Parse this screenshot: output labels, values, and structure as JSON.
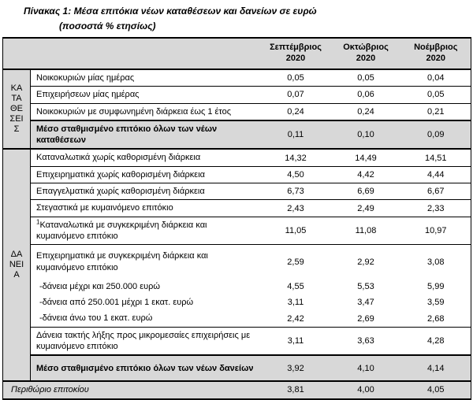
{
  "title": "Πίνακας 1: Μέσα επιτόκια νέων καταθέσεων και δανείων σε ευρώ",
  "subtitle": "(ποσοστά % ετησίως)",
  "columns": [
    {
      "month": "Σεπτέμβριος",
      "year": "2020"
    },
    {
      "month": "Οκτώβριος",
      "year": "2020"
    },
    {
      "month": "Νοέμβριος",
      "year": "2020"
    }
  ],
  "sections": [
    {
      "id": "katatheseis",
      "label_lines": [
        "ΚΑ",
        "ΤΑ",
        "ΘΕ",
        "ΣΕΙ",
        "Σ"
      ],
      "rows": [
        {
          "label": "Νοικοκυριών μίας ημέρας",
          "values": [
            "0,05",
            "0,05",
            "0,04"
          ],
          "style": "normal"
        },
        {
          "label": "Επιχειρήσεων μίας ημέρας",
          "values": [
            "0,07",
            "0,06",
            "0,05"
          ],
          "style": "normal"
        },
        {
          "label": "Νοικοκυριών με συμφωνημένη διάρκεια έως 1 έτος",
          "values": [
            "0,24",
            "0,24",
            "0,21"
          ],
          "style": "normal"
        },
        {
          "label": "Μέσο σταθμισμένο επιτόκιο όλων των νέων καταθέσεων",
          "values": [
            "0,11",
            "0,10",
            "0,09"
          ],
          "style": "summary"
        }
      ]
    },
    {
      "id": "daneia",
      "label_lines": [
        "ΔΑ",
        "ΝΕΙ",
        "Α"
      ],
      "rows": [
        {
          "label": "Καταναλωτικά χωρίς καθορισμένη διάρκεια",
          "values": [
            "14,32",
            "14,49",
            "14,51"
          ],
          "style": "normal"
        },
        {
          "label": "Επιχειρηματικά χωρίς καθορισμένη διάρκεια",
          "values": [
            "4,50",
            "4,42",
            "4,44"
          ],
          "style": "normal"
        },
        {
          "label": "Επαγγελματικά χωρίς καθορισμένη διάρκεια",
          "values": [
            "6,73",
            "6,69",
            "6,67"
          ],
          "style": "normal"
        },
        {
          "label": "Στεγαστικά με κυμαινόμενο επιτόκιο",
          "values": [
            "2,43",
            "2,49",
            "2,33"
          ],
          "style": "normal"
        },
        {
          "sup": "1",
          "label": "Καταναλωτικά με συγκεκριμένη διάρκεια και κυμαινόμενο επιτόκιο",
          "values": [
            "11,05",
            "11,08",
            "10,97"
          ],
          "style": "normal"
        },
        {
          "label": "Επιχειρηματικά με συγκεκριμένη διάρκεια και κυμαινόμενο επιτόκιο",
          "values": [
            "2,59",
            "2,92",
            "3,08"
          ],
          "style": "grouphead"
        },
        {
          "label": "-δάνεια μέχρι και 250.000 ευρώ",
          "values": [
            "4,55",
            "5,53",
            "5,99"
          ],
          "style": "sub"
        },
        {
          "label": "-δάνεια από 250.001 μέχρι 1 εκατ. ευρώ",
          "values": [
            "3,11",
            "3,47",
            "3,59"
          ],
          "style": "sub"
        },
        {
          "label": "-δάνεια άνω του 1 εκατ. ευρώ",
          "values": [
            "2,42",
            "2,69",
            "2,68"
          ],
          "style": "sub"
        },
        {
          "label": "Δάνεια τακτής λήξης προς μικρομεσαίες επιχειρήσεις με κυμαινόμενο επιτόκιο",
          "values": [
            "3,11",
            "3,63",
            "4,28"
          ],
          "style": "normal"
        },
        {
          "label": "Μέσο σταθμισμένο επιτόκιο όλων των νέων δανείων",
          "values": [
            "3,92",
            "4,10",
            "4,14"
          ],
          "style": "summary"
        }
      ]
    }
  ],
  "footer_row": {
    "label": "Περιθώριο επιτοκίου",
    "values": [
      "3,81",
      "4,00",
      "4,05"
    ]
  },
  "colors": {
    "header_bg": "#d8d8d8",
    "summary_bg": "#d8d8d8",
    "border": "#000000",
    "text": "#000000"
  }
}
